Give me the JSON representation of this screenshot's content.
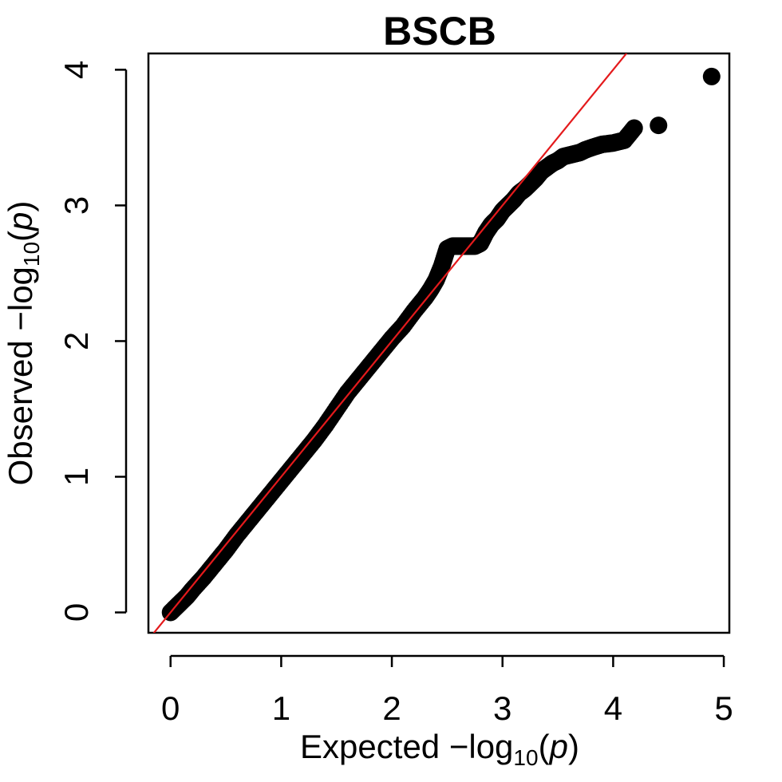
{
  "chart_data": {
    "type": "scatter",
    "title": "BSCB",
    "xlabel": {
      "prefix": "Expected  −log",
      "subscript": "10",
      "open": "(",
      "var": "p",
      "close": ")"
    },
    "ylabel": {
      "prefix": "Observed  −log",
      "subscript": "10",
      "open": "(",
      "var": "p",
      "close": ")"
    },
    "xlim": [
      -0.2,
      5.05
    ],
    "ylim": [
      -0.15,
      4.12
    ],
    "xticks": [
      0,
      1,
      2,
      3,
      4,
      5
    ],
    "yticks": [
      0,
      1,
      2,
      3,
      4
    ],
    "grid": false,
    "legend": "none",
    "point_color": "#000000",
    "reference_line": {
      "color": "#e41a1c",
      "slope": 1,
      "intercept": 0
    },
    "series": [
      {
        "x": [
          0.0,
          0.05,
          0.1,
          0.15,
          0.2,
          0.3,
          0.4,
          0.5,
          0.6,
          0.7,
          0.8,
          0.9,
          1.0,
          1.1,
          1.2,
          1.3,
          1.4,
          1.5,
          1.6,
          1.7,
          1.8,
          1.9,
          2.0,
          2.1,
          2.2,
          2.3,
          2.35,
          2.4,
          2.45,
          2.5,
          2.55,
          2.6,
          2.65,
          2.7,
          2.75,
          2.8,
          2.85,
          2.9,
          2.95,
          3.0,
          3.05,
          3.1,
          3.15,
          3.2,
          3.25,
          3.3,
          3.35,
          3.4,
          3.45,
          3.5,
          3.55,
          3.6,
          3.65,
          3.7,
          3.75,
          3.82,
          3.9,
          4.0,
          4.1,
          4.19,
          4.41,
          4.89
        ],
        "y": [
          0.0,
          0.04,
          0.08,
          0.12,
          0.17,
          0.26,
          0.36,
          0.46,
          0.57,
          0.67,
          0.77,
          0.87,
          0.97,
          1.07,
          1.17,
          1.27,
          1.38,
          1.5,
          1.62,
          1.72,
          1.82,
          1.92,
          2.02,
          2.11,
          2.22,
          2.32,
          2.38,
          2.45,
          2.55,
          2.68,
          2.7,
          2.7,
          2.7,
          2.7,
          2.7,
          2.72,
          2.8,
          2.86,
          2.9,
          2.96,
          3.0,
          3.04,
          3.09,
          3.12,
          3.16,
          3.2,
          3.25,
          3.28,
          3.31,
          3.33,
          3.36,
          3.37,
          3.38,
          3.39,
          3.41,
          3.43,
          3.45,
          3.46,
          3.48,
          3.57,
          3.59,
          3.95
        ]
      }
    ]
  }
}
